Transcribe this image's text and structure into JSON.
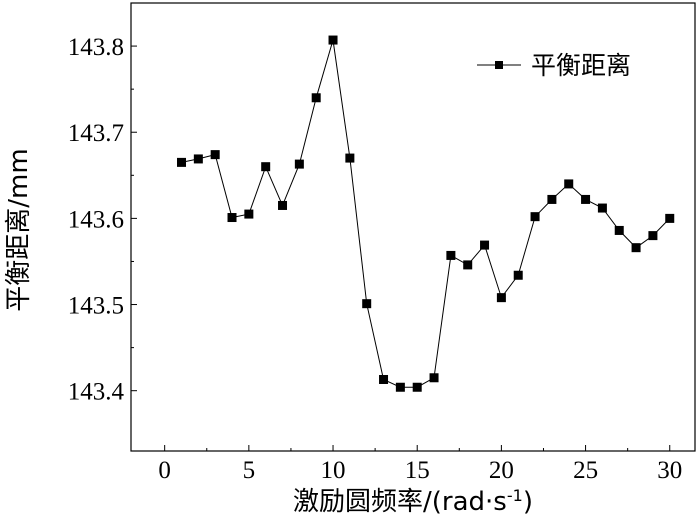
{
  "chart_data": {
    "type": "line",
    "xlabel": "激励圆频率/(rad·s",
    "xlabel_sup": "-1",
    "xlabel_end": ")",
    "ylabel": "平衡距离/mm",
    "xlim": [
      -2,
      31.5
    ],
    "ylim": [
      143.33,
      143.85
    ],
    "xticks": [
      0,
      5,
      10,
      15,
      20,
      25,
      30
    ],
    "xtick_labels": [
      "0",
      "5",
      "10",
      "15",
      "20",
      "25",
      "30"
    ],
    "yticks": [
      143.4,
      143.5,
      143.6,
      143.7,
      143.8
    ],
    "ytick_labels": [
      "143.4",
      "143.5",
      "143.6",
      "143.7",
      "143.8"
    ],
    "grid": false,
    "legend_position": "top-right",
    "series": [
      {
        "name": "平衡距离",
        "color": "#000000",
        "marker": "square",
        "x": [
          1,
          2,
          3,
          4,
          5,
          6,
          7,
          8,
          9,
          10,
          11,
          12,
          13,
          14,
          15,
          16,
          17,
          18,
          19,
          20,
          21,
          22,
          23,
          24,
          25,
          26,
          27,
          28,
          29,
          30
        ],
        "y": [
          143.665,
          143.669,
          143.674,
          143.601,
          143.605,
          143.66,
          143.615,
          143.663,
          143.74,
          143.807,
          143.67,
          143.501,
          143.413,
          143.404,
          143.404,
          143.415,
          143.557,
          143.546,
          143.569,
          143.508,
          143.534,
          143.602,
          143.622,
          143.64,
          143.622,
          143.612,
          143.586,
          143.566,
          143.58,
          143.6
        ]
      }
    ]
  }
}
